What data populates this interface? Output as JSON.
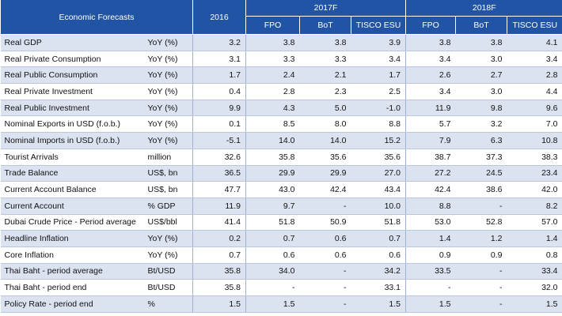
{
  "table": {
    "header": {
      "title": "Economic Forecasts",
      "year_2016": "2016",
      "group_2017": "2017F",
      "group_2018": "2018F",
      "sub_2017": [
        "FPO",
        "BoT",
        "TISCO ESU"
      ],
      "sub_2018": [
        "FPO",
        "BoT",
        "TISCO ESU"
      ]
    },
    "rows": [
      {
        "label": "Real GDP",
        "unit": "YoY (%)",
        "values": [
          "3.2",
          "3.8",
          "3.8",
          "3.9",
          "3.8",
          "3.8",
          "4.1"
        ]
      },
      {
        "label": "Real Private Consumption",
        "unit": "YoY (%)",
        "values": [
          "3.1",
          "3.3",
          "3.3",
          "3.4",
          "3.4",
          "3.0",
          "3.4"
        ]
      },
      {
        "label": "Real Public Consumption",
        "unit": "YoY (%)",
        "values": [
          "1.7",
          "2.4",
          "2.1",
          "1.7",
          "2.6",
          "2.7",
          "2.8"
        ]
      },
      {
        "label": "Real Private Investment",
        "unit": "YoY (%)",
        "values": [
          "0.4",
          "2.8",
          "2.3",
          "2.5",
          "3.4",
          "3.0",
          "4.4"
        ]
      },
      {
        "label": "Real Public Investment",
        "unit": "YoY (%)",
        "values": [
          "9.9",
          "4.3",
          "5.0",
          "-1.0",
          "11.9",
          "9.8",
          "9.6"
        ]
      },
      {
        "label": "Nominal Exports in USD (f.o.b.)",
        "unit": "YoY (%)",
        "values": [
          "0.1",
          "8.5",
          "8.0",
          "8.8",
          "5.7",
          "3.2",
          "7.0"
        ]
      },
      {
        "label": "Nominal Imports in USD (f.o.b.)",
        "unit": "YoY (%)",
        "values": [
          "-5.1",
          "14.0",
          "14.0",
          "15.2",
          "7.9",
          "6.3",
          "10.8"
        ]
      },
      {
        "label": "Tourist Arrivals",
        "unit": "million",
        "values": [
          "32.6",
          "35.8",
          "35.6",
          "35.6",
          "38.7",
          "37.3",
          "38.3"
        ]
      },
      {
        "label": "Trade Balance",
        "unit": "US$, bn",
        "values": [
          "36.5",
          "29.9",
          "29.9",
          "27.0",
          "27.2",
          "24.5",
          "23.4"
        ]
      },
      {
        "label": "Current Account Balance",
        "unit": "US$, bn",
        "values": [
          "47.7",
          "43.0",
          "42.4",
          "43.4",
          "42.4",
          "38.6",
          "42.0"
        ]
      },
      {
        "label": "Current Account",
        "unit": "% GDP",
        "values": [
          "11.9",
          "9.7",
          "-",
          "10.0",
          "8.8",
          "-",
          "8.2"
        ]
      },
      {
        "label": "Dubai Crude Price - Period average",
        "unit": "US$/bbl",
        "values": [
          "41.4",
          "51.8",
          "50.9",
          "51.8",
          "53.0",
          "52.8",
          "57.0"
        ]
      },
      {
        "label": "Headline Inflation",
        "unit": "YoY (%)",
        "values": [
          "0.2",
          "0.7",
          "0.6",
          "0.7",
          "1.4",
          "1.2",
          "1.4"
        ]
      },
      {
        "label": "Core Inflation",
        "unit": "YoY (%)",
        "values": [
          "0.7",
          "0.6",
          "0.6",
          "0.6",
          "0.9",
          "0.9",
          "0.8"
        ]
      },
      {
        "label": "Thai Baht - period average",
        "unit": "Bt/USD",
        "values": [
          "35.8",
          "34.0",
          "-",
          "34.2",
          "33.5",
          "-",
          "33.4"
        ]
      },
      {
        "label": "Thai Baht - period end",
        "unit": "Bt/USD",
        "values": [
          "35.8",
          "-",
          "-",
          "33.1",
          "-",
          "-",
          "32.0"
        ]
      },
      {
        "label": "Policy Rate - period end",
        "unit": "%",
        "values": [
          "1.5",
          "1.5",
          "-",
          "1.5",
          "1.5",
          "-",
          "1.5"
        ]
      }
    ]
  },
  "colors": {
    "header_bg": "#2154a4",
    "header_text": "#ffffff",
    "band_bg": "#dbe3f1",
    "row_bg": "#ffffff",
    "grid_line": "#b9c6de"
  }
}
